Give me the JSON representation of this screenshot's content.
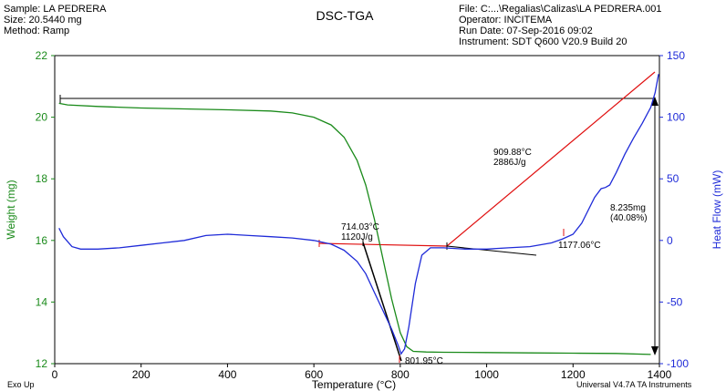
{
  "header": {
    "sample": "Sample: LA PEDRERA",
    "size": "Size:  20.5440 mg",
    "method": "Method: Ramp",
    "title": "DSC-TGA",
    "file": "File: C:...\\Regalias\\Calizas\\LA PEDRERA.001",
    "operator": "Operator: INCITEMA",
    "run_date": "Run Date: 07-Sep-2016 09:02",
    "instrument": "Instrument: SDT Q600 V20.9 Build 20"
  },
  "footer": {
    "exo": "Exo Up",
    "software": "Universal V4.7A TA Instruments"
  },
  "colors": {
    "weight": "#1a8a1a",
    "heat": "#1f2bd8",
    "tangent_red": "#e01010",
    "tangent_black": "#000000"
  },
  "chart_data": {
    "type": "line",
    "xlabel": "Temperature (°C)",
    "xlim": [
      0,
      1400
    ],
    "xticks": [
      0,
      200,
      400,
      600,
      800,
      1000,
      1200,
      1400
    ],
    "y_left": {
      "label": "Weight (mg)",
      "lim": [
        12,
        22
      ],
      "ticks": [
        12,
        14,
        16,
        18,
        20,
        22
      ]
    },
    "y_right": {
      "label": "Heat Flow (mW)",
      "lim": [
        -100,
        150
      ],
      "ticks": [
        -100,
        -50,
        0,
        50,
        100,
        150
      ]
    },
    "series": [
      {
        "axis": "left",
        "x": [
          10,
          30,
          100,
          200,
          300,
          400,
          500,
          550,
          600,
          640,
          670,
          700,
          720,
          740,
          760,
          780,
          800,
          815,
          830,
          860,
          900,
          1000,
          1100,
          1200,
          1300,
          1380
        ],
        "values": [
          20.45,
          20.4,
          20.35,
          20.3,
          20.27,
          20.24,
          20.2,
          20.14,
          20.0,
          19.75,
          19.35,
          18.6,
          17.8,
          16.7,
          15.4,
          14.1,
          13.0,
          12.55,
          12.4,
          12.38,
          12.37,
          12.36,
          12.35,
          12.34,
          12.33,
          12.3
        ]
      },
      {
        "axis": "right",
        "x": [
          10,
          20,
          40,
          60,
          100,
          150,
          200,
          250,
          300,
          350,
          400,
          450,
          500,
          550,
          600,
          640,
          670,
          700,
          720,
          740,
          760,
          780,
          795,
          802,
          810,
          820,
          835,
          850,
          870,
          900,
          950,
          1000,
          1050,
          1100,
          1150,
          1175,
          1200,
          1220,
          1250,
          1265,
          1275,
          1285,
          1300,
          1320,
          1340,
          1360,
          1380,
          1390,
          1398
        ],
        "values": [
          10,
          3,
          -5,
          -7,
          -7,
          -6,
          -4,
          -2,
          0,
          4,
          5,
          4,
          3,
          2,
          0,
          -3,
          -8,
          -17,
          -27,
          -42,
          -57,
          -72,
          -85,
          -92,
          -88,
          -70,
          -35,
          -12,
          -6,
          -6,
          -7,
          -7,
          -6,
          -5,
          -2,
          1,
          5,
          14,
          35,
          42,
          43,
          45,
          55,
          70,
          83,
          95,
          108,
          120,
          135
        ]
      }
    ],
    "annotations": [
      {
        "x": 714.03,
        "text": [
          "714.03°C",
          "1120J/g"
        ]
      },
      {
        "x": 909.88,
        "text": [
          "909.88°C",
          "2886J/g"
        ]
      },
      {
        "x": 801.95,
        "text": [
          "801.95°C"
        ]
      },
      {
        "x": 1177.06,
        "text": [
          "1177.06°C"
        ]
      },
      {
        "text": [
          "8.235mg",
          "(40.08%)"
        ]
      }
    ]
  }
}
